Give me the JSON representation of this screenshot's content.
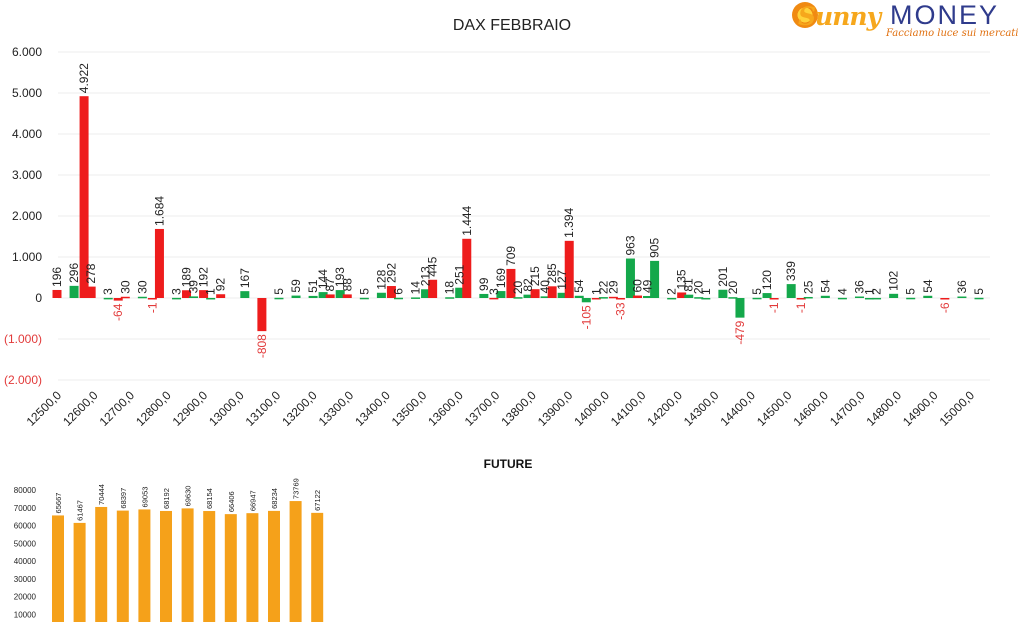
{
  "logo": {
    "brand_part1": "Sunny",
    "brand_part2": "MONEY",
    "tagline": "Facciamo luce sui mercati"
  },
  "colors": {
    "red": "#ee1c1c",
    "green": "#14a84b",
    "orange": "#f5a11a",
    "neg_label": "#e23a3a",
    "text": "#404040"
  },
  "chart_data": [
    {
      "type": "bar",
      "title": "DAX FEBBRAIO",
      "xlabel": "",
      "ylabel": "",
      "ylim": [
        -2000,
        6000
      ],
      "yticks": [
        6000,
        5000,
        4000,
        3000,
        2000,
        1000,
        0,
        -1000,
        -2000
      ],
      "ytick_labels": [
        "6.000",
        "5.000",
        "4.000",
        "3.000",
        "2.000",
        "1.000",
        "0",
        "(1.000)",
        "(2.000)"
      ],
      "x_tick_labels": [
        "12500,0",
        "12600,0",
        "12700,0",
        "12800,0",
        "12900,0",
        "13000,0",
        "13100,0",
        "13200,0",
        "13300,0",
        "13400,0",
        "13500,0",
        "13600,0",
        "13700,0",
        "13800,0",
        "13900,0",
        "14000,0",
        "14100,0",
        "14200,0",
        "14300,0",
        "14400,0",
        "14500,0",
        "14600,0",
        "14700,0",
        "14800,0",
        "14900,0",
        "15000,0"
      ],
      "grid": true,
      "bars": [
        {
          "x": 12500,
          "v": 196,
          "c": "red",
          "l": "196"
        },
        {
          "x": 12550,
          "v": 296,
          "c": "green",
          "l": "296"
        },
        {
          "x": 12550,
          "v": 4922,
          "c": "red",
          "l": "4.922"
        },
        {
          "x": 12600,
          "v": 278,
          "c": "red",
          "l": "278"
        },
        {
          "x": 12650,
          "v": 3,
          "c": "green",
          "l": "3"
        },
        {
          "x": 12650,
          "v": -64,
          "c": "red",
          "l": "-64"
        },
        {
          "x": 12700,
          "v": 30,
          "c": "red",
          "l": "30"
        },
        {
          "x": 12750,
          "v": 30,
          "c": "green",
          "l": "30"
        },
        {
          "x": 12750,
          "v": -1,
          "c": "red",
          "l": "-1"
        },
        {
          "x": 12800,
          "v": 1684,
          "c": "red",
          "l": "1.684"
        },
        {
          "x": 12850,
          "v": 3,
          "c": "green",
          "l": "3"
        },
        {
          "x": 12850,
          "v": 189,
          "c": "red",
          "l": "189"
        },
        {
          "x": 12900,
          "v": 39,
          "c": "green",
          "l": "39"
        },
        {
          "x": 12900,
          "v": 192,
          "c": "red",
          "l": "192"
        },
        {
          "x": 12950,
          "v": 1,
          "c": "green",
          "l": "1"
        },
        {
          "x": 12950,
          "v": 92,
          "c": "red",
          "l": "92"
        },
        {
          "x": 13050,
          "v": 167,
          "c": "green",
          "l": "167"
        },
        {
          "x": 13100,
          "v": -808,
          "c": "red",
          "l": "-808"
        },
        {
          "x": 13150,
          "v": 5,
          "c": "green",
          "l": "5"
        },
        {
          "x": 13200,
          "v": 59,
          "c": "green",
          "l": "59"
        },
        {
          "x": 13250,
          "v": 51,
          "c": "green",
          "l": "51"
        },
        {
          "x": 13250,
          "v": 144,
          "c": "green",
          "l": "144"
        },
        {
          "x": 13300,
          "v": 87,
          "c": "red",
          "l": "87"
        },
        {
          "x": 13300,
          "v": 193,
          "c": "green",
          "l": "193"
        },
        {
          "x": 13350,
          "v": 88,
          "c": "red",
          "l": "88"
        },
        {
          "x": 13400,
          "v": 5,
          "c": "green",
          "l": "5"
        },
        {
          "x": 13450,
          "v": 128,
          "c": "green",
          "l": "128"
        },
        {
          "x": 13450,
          "v": 292,
          "c": "red",
          "l": "292"
        },
        {
          "x": 13500,
          "v": 6,
          "c": "green",
          "l": "6"
        },
        {
          "x": 13550,
          "v": 14,
          "c": "green",
          "l": "14"
        },
        {
          "x": 13550,
          "v": 213,
          "c": "green",
          "l": "213"
        },
        {
          "x": 13600,
          "v": 445,
          "c": "red",
          "l": "445"
        },
        {
          "x": 13650,
          "v": 18,
          "c": "green",
          "l": "18"
        },
        {
          "x": 13650,
          "v": 251,
          "c": "green",
          "l": "251"
        },
        {
          "x": 13700,
          "v": 1444,
          "c": "red",
          "l": "1.444"
        },
        {
          "x": 13750,
          "v": 99,
          "c": "green",
          "l": "99"
        },
        {
          "x": 13750,
          "v": 3,
          "c": "red",
          "l": "3"
        },
        {
          "x": 13800,
          "v": 169,
          "c": "green",
          "l": "169"
        },
        {
          "x": 13800,
          "v": 709,
          "c": "red",
          "l": "709"
        },
        {
          "x": 13850,
          "v": 20,
          "c": "green",
          "l": "20"
        },
        {
          "x": 13850,
          "v": 82,
          "c": "green",
          "l": "82"
        },
        {
          "x": 13900,
          "v": 215,
          "c": "red",
          "l": "215"
        },
        {
          "x": 13900,
          "v": 40,
          "c": "green",
          "l": "40"
        },
        {
          "x": 13950,
          "v": 285,
          "c": "red",
          "l": "285"
        },
        {
          "x": 13950,
          "v": 127,
          "c": "green",
          "l": "127"
        },
        {
          "x": 14000,
          "v": 1394,
          "c": "red",
          "l": "1.394"
        },
        {
          "x": 14000,
          "v": 54,
          "c": "green",
          "l": "54"
        },
        {
          "x": 14050,
          "v": -105,
          "c": "green",
          "l": "-105"
        },
        {
          "x": 14050,
          "v": 1,
          "c": "red",
          "l": "1"
        },
        {
          "x": 14100,
          "v": 22,
          "c": "green",
          "l": "22"
        },
        {
          "x": 14100,
          "v": 29,
          "c": "red",
          "l": "29"
        },
        {
          "x": 14150,
          "v": -33,
          "c": "red",
          "l": "-33"
        },
        {
          "x": 14150,
          "v": 963,
          "c": "green",
          "l": "963"
        },
        {
          "x": 14200,
          "v": 60,
          "c": "red",
          "l": "60"
        },
        {
          "x": 14200,
          "v": 49,
          "c": "green",
          "l": "49"
        },
        {
          "x": 14250,
          "v": 905,
          "c": "green",
          "l": "905"
        },
        {
          "x": 14300,
          "v": 2,
          "c": "green",
          "l": "2"
        },
        {
          "x": 14300,
          "v": 135,
          "c": "red",
          "l": "135"
        },
        {
          "x": 14350,
          "v": 81,
          "c": "green",
          "l": "81"
        },
        {
          "x": 14350,
          "v": 20,
          "c": "green",
          "l": "20"
        },
        {
          "x": 14400,
          "v": 1,
          "c": "green",
          "l": "1"
        },
        {
          "x": 14450,
          "v": 201,
          "c": "green",
          "l": "201"
        },
        {
          "x": 14450,
          "v": 20,
          "c": "green",
          "l": "20"
        },
        {
          "x": 14500,
          "v": -479,
          "c": "green",
          "l": "-479"
        },
        {
          "x": 14550,
          "v": 5,
          "c": "green",
          "l": "5"
        },
        {
          "x": 14550,
          "v": 120,
          "c": "green",
          "l": "120"
        },
        {
          "x": 14600,
          "v": -1,
          "c": "red",
          "l": "-1"
        },
        {
          "x": 14650,
          "v": 339,
          "c": "green",
          "l": "339"
        },
        {
          "x": 14650,
          "v": -1,
          "c": "red",
          "l": "-1"
        },
        {
          "x": 14700,
          "v": 25,
          "c": "green",
          "l": "25"
        },
        {
          "x": 14750,
          "v": 54,
          "c": "green",
          "l": "54"
        },
        {
          "x": 14800,
          "v": 4,
          "c": "green",
          "l": "4"
        },
        {
          "x": 14850,
          "v": 36,
          "c": "green",
          "l": "36"
        },
        {
          "x": 14850,
          "v": 1,
          "c": "green",
          "l": "1"
        },
        {
          "x": 14900,
          "v": 2,
          "c": "green",
          "l": "2"
        },
        {
          "x": 14950,
          "v": 102,
          "c": "green",
          "l": "102"
        },
        {
          "x": 15000,
          "v": 5,
          "c": "green",
          "l": "5"
        },
        {
          "x": 15050,
          "v": 54,
          "c": "green",
          "l": "54"
        },
        {
          "x": 15100,
          "v": -6,
          "c": "red",
          "l": "-6"
        },
        {
          "x": 15150,
          "v": 36,
          "c": "green",
          "l": "36"
        },
        {
          "x": 15200,
          "v": 5,
          "c": "green",
          "l": "5"
        }
      ]
    },
    {
      "type": "bar",
      "title": "FUTURE",
      "xlabel": "",
      "ylabel": "",
      "ylim": [
        0,
        80000
      ],
      "yticks": [
        80000,
        70000,
        60000,
        50000,
        40000,
        30000,
        20000,
        10000
      ],
      "ytick_labels": [
        "80000",
        "70000",
        "60000",
        "50000",
        "40000",
        "30000",
        "20000",
        "10000"
      ],
      "values": [
        65667,
        61467,
        70444,
        68397,
        69053,
        68192,
        69630,
        68154,
        66406,
        66947,
        68234,
        73769,
        67122
      ],
      "color": "orange"
    }
  ]
}
